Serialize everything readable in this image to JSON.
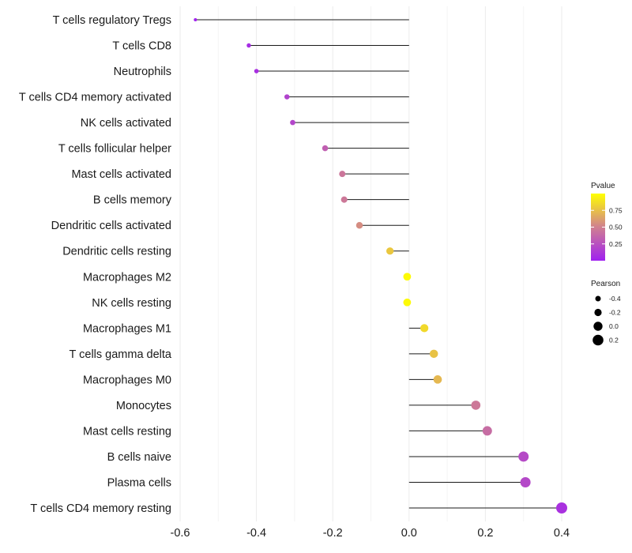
{
  "chart_data": {
    "type": "lollipop",
    "title": "",
    "xlabel": "",
    "ylabel": "",
    "xlim": [
      -0.6,
      0.4
    ],
    "x_ticks": [
      -0.6,
      -0.4,
      -0.2,
      0.0,
      0.2,
      0.4
    ],
    "x_tick_labels": [
      "-0.6",
      "-0.4",
      "-0.2",
      "0.0",
      "0.2",
      "0.4"
    ],
    "grid": true,
    "color_legend": {
      "title": "Pvalue",
      "ticks": [
        0.25,
        0.5,
        0.75
      ],
      "tick_labels": [
        "0.25",
        "0.50",
        "0.75"
      ],
      "range": [
        0.0,
        1.0
      ],
      "colors": [
        "#a020f0",
        "#d08090",
        "#ffff00"
      ]
    },
    "size_legend": {
      "title": "Pearson",
      "values": [
        -0.4,
        -0.2,
        0.0,
        0.2
      ],
      "labels": [
        "-0.4",
        "-0.2",
        "0.0",
        "0.2"
      ]
    },
    "items": [
      {
        "label": "T cells regulatory  Tregs",
        "pearson": -0.56,
        "pvalue": 0.01
      },
      {
        "label": "T cells CD8",
        "pearson": -0.42,
        "pvalue": 0.06
      },
      {
        "label": "Neutrophils",
        "pearson": -0.4,
        "pvalue": 0.08
      },
      {
        "label": "T cells CD4 memory activated",
        "pearson": -0.32,
        "pvalue": 0.18
      },
      {
        "label": "NK cells activated",
        "pearson": -0.305,
        "pvalue": 0.2
      },
      {
        "label": "T cells follicular helper",
        "pearson": -0.22,
        "pvalue": 0.33
      },
      {
        "label": "Mast cells activated",
        "pearson": -0.175,
        "pvalue": 0.45
      },
      {
        "label": "B cells memory",
        "pearson": -0.17,
        "pvalue": 0.46
      },
      {
        "label": "Dendritic cells activated",
        "pearson": -0.13,
        "pvalue": 0.55
      },
      {
        "label": "Dendritic cells resting",
        "pearson": -0.05,
        "pvalue": 0.78
      },
      {
        "label": "Macrophages M2",
        "pearson": -0.005,
        "pvalue": 0.98
      },
      {
        "label": "NK cells resting",
        "pearson": -0.005,
        "pvalue": 0.98
      },
      {
        "label": "Macrophages M1",
        "pearson": 0.04,
        "pvalue": 0.85
      },
      {
        "label": "T cells gamma delta",
        "pearson": 0.065,
        "pvalue": 0.76
      },
      {
        "label": "Macrophages M0",
        "pearson": 0.075,
        "pvalue": 0.72
      },
      {
        "label": "Monocytes",
        "pearson": 0.175,
        "pvalue": 0.46
      },
      {
        "label": "Mast cells resting",
        "pearson": 0.205,
        "pvalue": 0.4
      },
      {
        "label": "B cells naive",
        "pearson": 0.3,
        "pvalue": 0.22
      },
      {
        "label": "Plasma cells",
        "pearson": 0.305,
        "pvalue": 0.21
      },
      {
        "label": "T cells CD4 memory resting",
        "pearson": 0.4,
        "pvalue": 0.09
      }
    ]
  }
}
